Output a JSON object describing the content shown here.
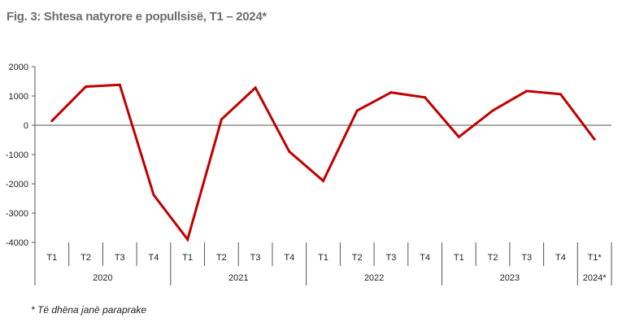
{
  "figure": {
    "title": "Fig. 3: Shtesa natyrore e popullsisë, T1 – 2024*",
    "footnote": "* Të dhëna janë paraprake"
  },
  "colors": {
    "series": "#c00000",
    "axis": "#555555",
    "text": "#222222"
  },
  "chart_data": {
    "type": "line",
    "title": "Fig. 3: Shtesa natyrore e popullsisë, T1 – 2024*",
    "xlabel": "",
    "ylabel": "",
    "ylim": [
      -4000,
      2000
    ],
    "yticks": [
      2000,
      1000,
      0,
      -1000,
      -2000,
      -3000,
      -4000
    ],
    "ytick_labels": [
      "2000",
      "1000",
      "0",
      "-1000",
      "-2000",
      "-3000",
      "-4000"
    ],
    "grid": false,
    "legend": "none",
    "categories": [
      "T1",
      "T2",
      "T3",
      "T4",
      "T1",
      "T2",
      "T3",
      "T4",
      "T1",
      "T2",
      "T3",
      "T4",
      "T1",
      "T2",
      "T3",
      "T4",
      "T1*"
    ],
    "groups": [
      {
        "label": "2020",
        "count": 4
      },
      {
        "label": "2021",
        "count": 4
      },
      {
        "label": "2022",
        "count": 4
      },
      {
        "label": "2023",
        "count": 4
      },
      {
        "label": "2024*",
        "count": 1
      }
    ],
    "series": [
      {
        "values": [
          150,
          1320,
          1380,
          -2380,
          -3900,
          200,
          1280,
          -900,
          -1900,
          500,
          1120,
          950,
          -400,
          500,
          1170,
          1060,
          -480
        ]
      }
    ]
  }
}
